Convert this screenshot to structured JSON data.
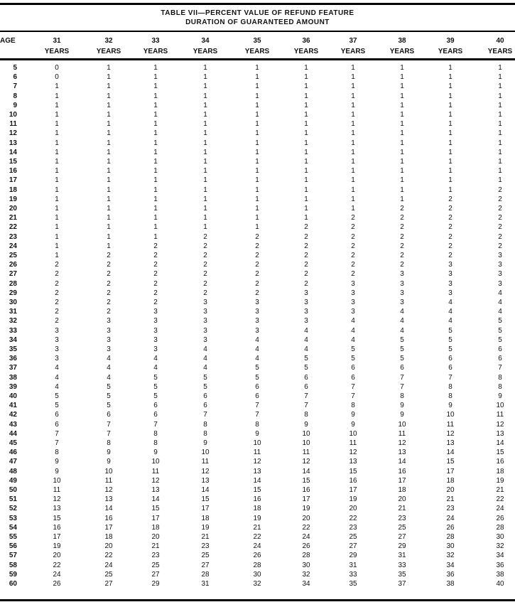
{
  "title": {
    "line1": "TABLE VII—PERCENT VALUE OF REFUND FEATURE",
    "line2": "DURATION OF GUARANTEED AMOUNT"
  },
  "header": {
    "age_label": "AGE",
    "columns": [
      {
        "num": "31",
        "unit": "YEARS"
      },
      {
        "num": "32",
        "unit": "YEARS"
      },
      {
        "num": "33",
        "unit": "YEARS"
      },
      {
        "num": "34",
        "unit": "YEARS"
      },
      {
        "num": "35",
        "unit": "YEARS"
      },
      {
        "num": "36",
        "unit": "YEARS"
      },
      {
        "num": "37",
        "unit": "YEARS"
      },
      {
        "num": "38",
        "unit": "YEARS"
      },
      {
        "num": "39",
        "unit": "YEARS"
      },
      {
        "num": "40",
        "unit": "YEARS"
      }
    ]
  },
  "rows": [
    {
      "age": "5",
      "values": [
        "0",
        "1",
        "1",
        "1",
        "1",
        "1",
        "1",
        "1",
        "1",
        "1"
      ]
    },
    {
      "age": "6",
      "values": [
        "0",
        "1",
        "1",
        "1",
        "1",
        "1",
        "1",
        "1",
        "1",
        "1"
      ]
    },
    {
      "age": "7",
      "values": [
        "1",
        "1",
        "1",
        "1",
        "1",
        "1",
        "1",
        "1",
        "1",
        "1"
      ]
    },
    {
      "age": "8",
      "values": [
        "1",
        "1",
        "1",
        "1",
        "1",
        "1",
        "1",
        "1",
        "1",
        "1"
      ]
    },
    {
      "age": "9",
      "values": [
        "1",
        "1",
        "1",
        "1",
        "1",
        "1",
        "1",
        "1",
        "1",
        "1"
      ]
    },
    {
      "age": "10",
      "values": [
        "1",
        "1",
        "1",
        "1",
        "1",
        "1",
        "1",
        "1",
        "1",
        "1"
      ]
    },
    {
      "age": "11",
      "values": [
        "1",
        "1",
        "1",
        "1",
        "1",
        "1",
        "1",
        "1",
        "1",
        "1"
      ]
    },
    {
      "age": "12",
      "values": [
        "1",
        "1",
        "1",
        "1",
        "1",
        "1",
        "1",
        "1",
        "1",
        "1"
      ]
    },
    {
      "age": "13",
      "values": [
        "1",
        "1",
        "1",
        "1",
        "1",
        "1",
        "1",
        "1",
        "1",
        "1"
      ]
    },
    {
      "age": "14",
      "values": [
        "1",
        "1",
        "1",
        "1",
        "1",
        "1",
        "1",
        "1",
        "1",
        "1"
      ]
    },
    {
      "age": "15",
      "values": [
        "1",
        "1",
        "1",
        "1",
        "1",
        "1",
        "1",
        "1",
        "1",
        "1"
      ]
    },
    {
      "age": "16",
      "values": [
        "1",
        "1",
        "1",
        "1",
        "1",
        "1",
        "1",
        "1",
        "1",
        "1"
      ]
    },
    {
      "age": "17",
      "values": [
        "1",
        "1",
        "1",
        "1",
        "1",
        "1",
        "1",
        "1",
        "1",
        "1"
      ]
    },
    {
      "age": "18",
      "values": [
        "1",
        "1",
        "1",
        "1",
        "1",
        "1",
        "1",
        "1",
        "1",
        "2"
      ]
    },
    {
      "age": "19",
      "values": [
        "1",
        "1",
        "1",
        "1",
        "1",
        "1",
        "1",
        "1",
        "2",
        "2"
      ]
    },
    {
      "age": "20",
      "values": [
        "1",
        "1",
        "1",
        "1",
        "1",
        "1",
        "1",
        "2",
        "2",
        "2"
      ]
    },
    {
      "age": "21",
      "values": [
        "1",
        "1",
        "1",
        "1",
        "1",
        "1",
        "2",
        "2",
        "2",
        "2"
      ]
    },
    {
      "age": "22",
      "values": [
        "1",
        "1",
        "1",
        "1",
        "1",
        "2",
        "2",
        "2",
        "2",
        "2"
      ]
    },
    {
      "age": "23",
      "values": [
        "1",
        "1",
        "1",
        "2",
        "2",
        "2",
        "2",
        "2",
        "2",
        "2"
      ]
    },
    {
      "age": "24",
      "values": [
        "1",
        "1",
        "2",
        "2",
        "2",
        "2",
        "2",
        "2",
        "2",
        "2"
      ]
    },
    {
      "age": "25",
      "values": [
        "1",
        "2",
        "2",
        "2",
        "2",
        "2",
        "2",
        "2",
        "2",
        "3"
      ]
    },
    {
      "age": "26",
      "values": [
        "2",
        "2",
        "2",
        "2",
        "2",
        "2",
        "2",
        "2",
        "3",
        "3"
      ]
    },
    {
      "age": "27",
      "values": [
        "2",
        "2",
        "2",
        "2",
        "2",
        "2",
        "2",
        "3",
        "3",
        "3"
      ]
    },
    {
      "age": "28",
      "values": [
        "2",
        "2",
        "2",
        "2",
        "2",
        "2",
        "3",
        "3",
        "3",
        "3"
      ]
    },
    {
      "age": "29",
      "values": [
        "2",
        "2",
        "2",
        "2",
        "2",
        "3",
        "3",
        "3",
        "3",
        "4"
      ]
    },
    {
      "age": "30",
      "values": [
        "2",
        "2",
        "2",
        "3",
        "3",
        "3",
        "3",
        "3",
        "4",
        "4"
      ]
    },
    {
      "age": "31",
      "values": [
        "2",
        "2",
        "3",
        "3",
        "3",
        "3",
        "3",
        "4",
        "4",
        "4"
      ]
    },
    {
      "age": "32",
      "values": [
        "2",
        "3",
        "3",
        "3",
        "3",
        "3",
        "4",
        "4",
        "4",
        "5"
      ]
    },
    {
      "age": "33",
      "values": [
        "3",
        "3",
        "3",
        "3",
        "3",
        "4",
        "4",
        "4",
        "5",
        "5"
      ]
    },
    {
      "age": "34",
      "values": [
        "3",
        "3",
        "3",
        "3",
        "4",
        "4",
        "4",
        "5",
        "5",
        "5"
      ]
    },
    {
      "age": "35",
      "values": [
        "3",
        "3",
        "3",
        "4",
        "4",
        "4",
        "5",
        "5",
        "5",
        "6"
      ]
    },
    {
      "age": "36",
      "values": [
        "3",
        "4",
        "4",
        "4",
        "4",
        "5",
        "5",
        "5",
        "6",
        "6"
      ]
    },
    {
      "age": "37",
      "values": [
        "4",
        "4",
        "4",
        "4",
        "5",
        "5",
        "6",
        "6",
        "6",
        "7"
      ]
    },
    {
      "age": "38",
      "values": [
        "4",
        "4",
        "5",
        "5",
        "5",
        "6",
        "6",
        "7",
        "7",
        "8"
      ]
    },
    {
      "age": "39",
      "values": [
        "4",
        "5",
        "5",
        "5",
        "6",
        "6",
        "7",
        "7",
        "8",
        "8"
      ]
    },
    {
      "age": "40",
      "values": [
        "5",
        "5",
        "5",
        "6",
        "6",
        "7",
        "7",
        "8",
        "8",
        "9"
      ]
    },
    {
      "age": "41",
      "values": [
        "5",
        "5",
        "6",
        "6",
        "7",
        "7",
        "8",
        "9",
        "9",
        "10"
      ]
    },
    {
      "age": "42",
      "values": [
        "6",
        "6",
        "6",
        "7",
        "7",
        "8",
        "9",
        "9",
        "10",
        "11"
      ]
    },
    {
      "age": "43",
      "values": [
        "6",
        "7",
        "7",
        "8",
        "8",
        "9",
        "9",
        "10",
        "11",
        "12"
      ]
    },
    {
      "age": "44",
      "values": [
        "7",
        "7",
        "8",
        "8",
        "9",
        "10",
        "10",
        "11",
        "12",
        "13"
      ]
    },
    {
      "age": "45",
      "values": [
        "7",
        "8",
        "8",
        "9",
        "10",
        "10",
        "11",
        "12",
        "13",
        "14"
      ]
    },
    {
      "age": "46",
      "values": [
        "8",
        "9",
        "9",
        "10",
        "11",
        "11",
        "12",
        "13",
        "14",
        "15"
      ]
    },
    {
      "age": "47",
      "values": [
        "9",
        "9",
        "10",
        "11",
        "12",
        "12",
        "13",
        "14",
        "15",
        "16"
      ]
    },
    {
      "age": "48",
      "values": [
        "9",
        "10",
        "11",
        "12",
        "13",
        "14",
        "15",
        "16",
        "17",
        "18"
      ]
    },
    {
      "age": "49",
      "values": [
        "10",
        "11",
        "12",
        "13",
        "14",
        "15",
        "16",
        "17",
        "18",
        "19"
      ]
    },
    {
      "age": "50",
      "values": [
        "11",
        "12",
        "13",
        "14",
        "15",
        "16",
        "17",
        "18",
        "20",
        "21"
      ]
    },
    {
      "age": "51",
      "values": [
        "12",
        "13",
        "14",
        "15",
        "16",
        "17",
        "19",
        "20",
        "21",
        "22"
      ]
    },
    {
      "age": "52",
      "values": [
        "13",
        "14",
        "15",
        "17",
        "18",
        "19",
        "20",
        "21",
        "23",
        "24"
      ]
    },
    {
      "age": "53",
      "values": [
        "15",
        "16",
        "17",
        "18",
        "19",
        "20",
        "22",
        "23",
        "24",
        "26"
      ]
    },
    {
      "age": "54",
      "values": [
        "16",
        "17",
        "18",
        "19",
        "21",
        "22",
        "23",
        "25",
        "26",
        "28"
      ]
    },
    {
      "age": "55",
      "values": [
        "17",
        "18",
        "20",
        "21",
        "22",
        "24",
        "25",
        "27",
        "28",
        "30"
      ]
    },
    {
      "age": "56",
      "values": [
        "19",
        "20",
        "21",
        "23",
        "24",
        "26",
        "27",
        "29",
        "30",
        "32"
      ]
    },
    {
      "age": "57",
      "values": [
        "20",
        "22",
        "23",
        "25",
        "26",
        "28",
        "29",
        "31",
        "32",
        "34"
      ]
    },
    {
      "age": "58",
      "values": [
        "22",
        "24",
        "25",
        "27",
        "28",
        "30",
        "31",
        "33",
        "34",
        "36"
      ]
    },
    {
      "age": "59",
      "values": [
        "24",
        "25",
        "27",
        "28",
        "30",
        "32",
        "33",
        "35",
        "36",
        "38"
      ]
    },
    {
      "age": "60",
      "values": [
        "26",
        "27",
        "29",
        "31",
        "32",
        "34",
        "35",
        "37",
        "38",
        "40"
      ]
    }
  ]
}
